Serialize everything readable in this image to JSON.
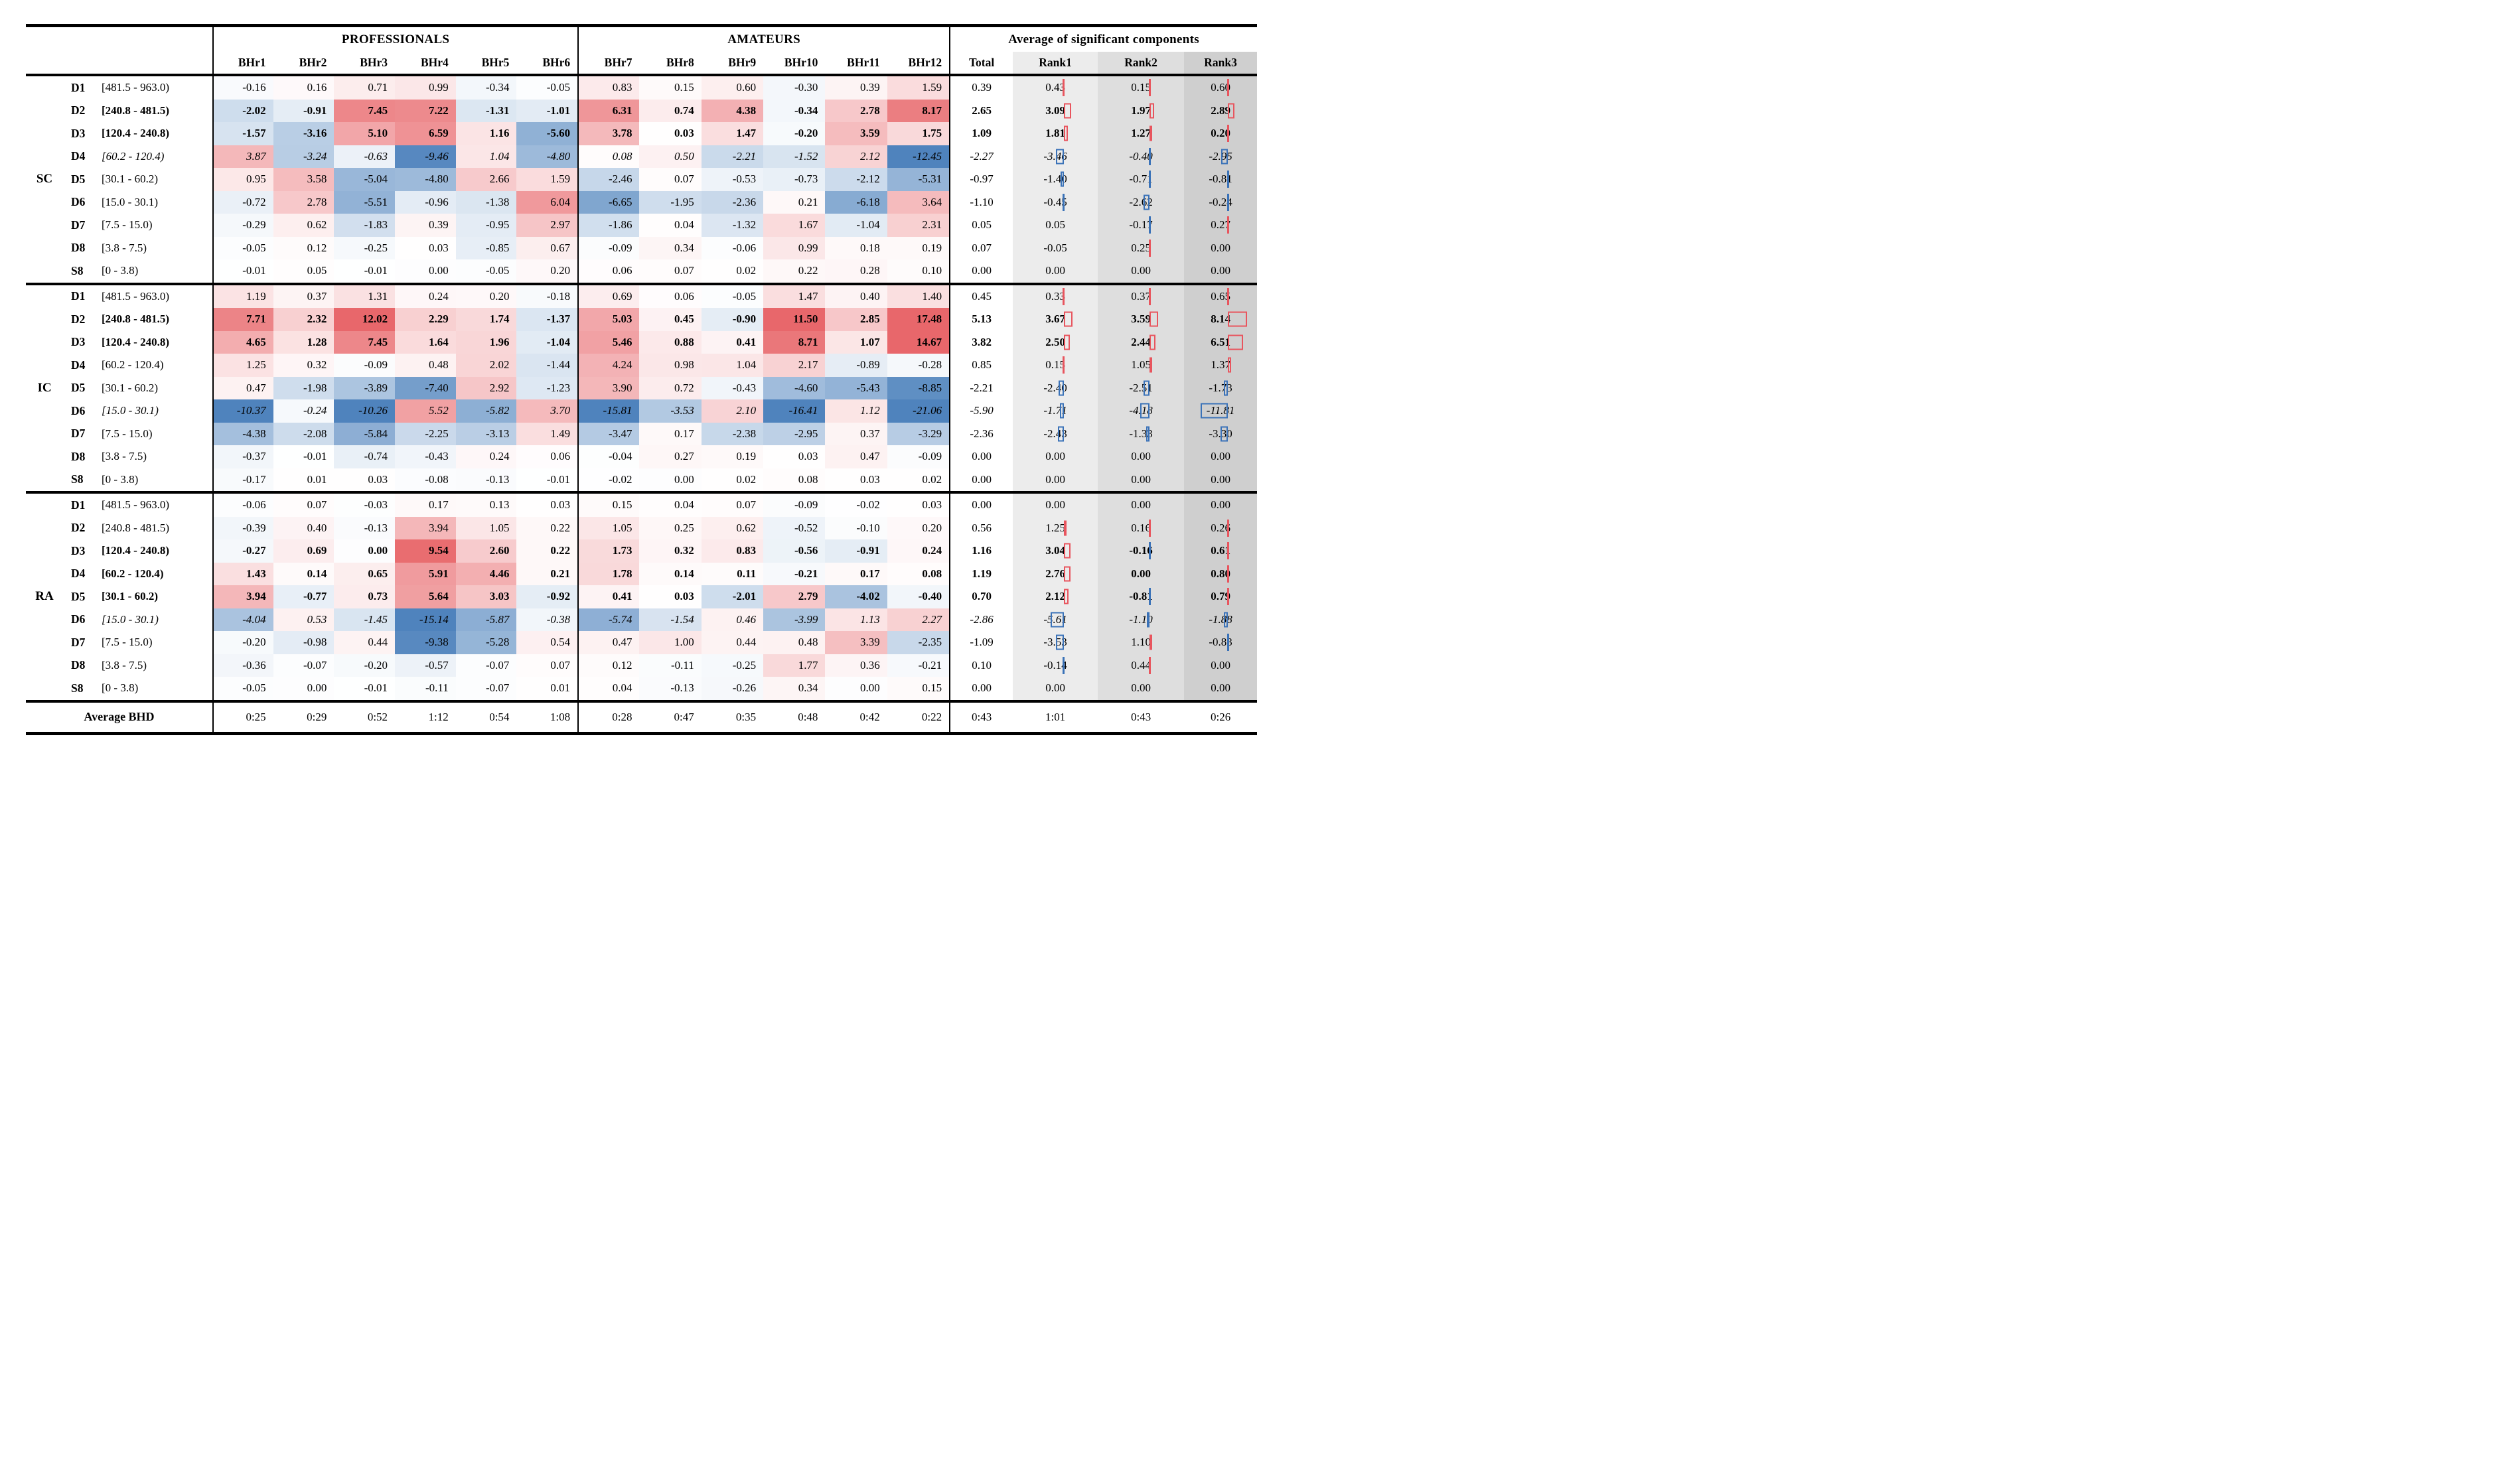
{
  "chart_data": {
    "type": "heatmap",
    "title": "",
    "col_groups": [
      "PROFESSIONALS",
      "AMATEURS",
      "Average of significant components"
    ],
    "columns": {
      "professionals": [
        "BHr1",
        "BHr2",
        "BHr3",
        "BHr4",
        "BHr5",
        "BHr6"
      ],
      "amateurs": [
        "BHr7",
        "BHr8",
        "BHr9",
        "BHr10",
        "BHr11",
        "BHr12"
      ],
      "right": [
        "Total",
        "Rank1",
        "Rank2",
        "Rank3"
      ]
    },
    "row_sections": [
      {
        "code": "SC",
        "rows": [
          {
            "code": "D1",
            "range": "[481.5 - 963.0)",
            "style": "normal",
            "pro": [
              -0.16,
              0.16,
              0.71,
              0.99,
              -0.34,
              -0.05
            ],
            "am": [
              0.83,
              0.15,
              0.6,
              -0.3,
              0.39,
              1.59
            ],
            "right": [
              0.39,
              0.43,
              0.15,
              0.6
            ]
          },
          {
            "code": "D2",
            "range": "[240.8 - 481.5)",
            "style": "bold",
            "pro": [
              -2.02,
              -0.91,
              7.45,
              7.22,
              -1.31,
              -1.01
            ],
            "am": [
              6.31,
              0.74,
              4.38,
              -0.34,
              2.78,
              8.17
            ],
            "right": [
              2.65,
              3.09,
              1.97,
              2.89
            ]
          },
          {
            "code": "D3",
            "range": "[120.4 - 240.8)",
            "style": "bold",
            "pro": [
              -1.57,
              -3.16,
              5.1,
              6.59,
              1.16,
              -5.6
            ],
            "am": [
              3.78,
              0.03,
              1.47,
              -0.2,
              3.59,
              1.75
            ],
            "right": [
              1.09,
              1.81,
              1.27,
              0.2
            ]
          },
          {
            "code": "D4",
            "range": "[60.2 - 120.4)",
            "style": "italic",
            "pro": [
              3.87,
              -3.24,
              -0.63,
              -9.46,
              1.04,
              -4.8
            ],
            "am": [
              0.08,
              0.5,
              -2.21,
              -1.52,
              2.12,
              -12.45
            ],
            "right": [
              -2.27,
              -3.46,
              -0.4,
              -2.95
            ]
          },
          {
            "code": "D5",
            "range": "[30.1 - 60.2)",
            "style": "normal",
            "pro": [
              0.95,
              3.58,
              -5.04,
              -4.8,
              2.66,
              1.59
            ],
            "am": [
              -2.46,
              0.07,
              -0.53,
              -0.73,
              -2.12,
              -5.31
            ],
            "right": [
              -0.97,
              -1.4,
              -0.71,
              -0.81
            ]
          },
          {
            "code": "D6",
            "range": "[15.0 - 30.1)",
            "style": "normal",
            "pro": [
              -0.72,
              2.78,
              -5.51,
              -0.96,
              -1.38,
              6.04
            ],
            "am": [
              -6.65,
              -1.95,
              -2.36,
              0.21,
              -6.18,
              3.64
            ],
            "right": [
              -1.1,
              -0.45,
              -2.62,
              -0.24
            ]
          },
          {
            "code": "D7",
            "range": "[7.5 - 15.0)",
            "style": "normal",
            "pro": [
              -0.29,
              0.62,
              -1.83,
              0.39,
              -0.95,
              2.97
            ],
            "am": [
              -1.86,
              0.04,
              -1.32,
              1.67,
              -1.04,
              2.31
            ],
            "right": [
              0.05,
              0.05,
              -0.17,
              0.27
            ]
          },
          {
            "code": "D8",
            "range": "[3.8 - 7.5)",
            "style": "normal",
            "pro": [
              -0.05,
              0.12,
              -0.25,
              0.03,
              -0.85,
              0.67
            ],
            "am": [
              -0.09,
              0.34,
              -0.06,
              0.99,
              0.18,
              0.19
            ],
            "right": [
              0.07,
              -0.05,
              0.25,
              0.0
            ]
          },
          {
            "code": "S8",
            "range": "[0 - 3.8)",
            "style": "normal",
            "pro": [
              -0.01,
              0.05,
              -0.01,
              0.0,
              -0.05,
              0.2
            ],
            "am": [
              0.06,
              0.07,
              0.02,
              0.22,
              0.28,
              0.1
            ],
            "right": [
              0.0,
              0.0,
              0.0,
              0.0
            ]
          }
        ]
      },
      {
        "code": "IC",
        "rows": [
          {
            "code": "D1",
            "range": "[481.5 - 963.0)",
            "style": "normal",
            "pro": [
              1.19,
              0.37,
              1.31,
              0.24,
              0.2,
              -0.18
            ],
            "am": [
              0.69,
              0.06,
              -0.05,
              1.47,
              0.4,
              1.4
            ],
            "right": [
              0.45,
              0.33,
              0.37,
              0.65
            ]
          },
          {
            "code": "D2",
            "range": "[240.8 - 481.5)",
            "style": "bold",
            "pro": [
              7.71,
              2.32,
              12.02,
              2.29,
              1.74,
              -1.37
            ],
            "am": [
              5.03,
              0.45,
              -0.9,
              11.5,
              2.85,
              17.48
            ],
            "right": [
              5.13,
              3.67,
              3.59,
              8.14
            ]
          },
          {
            "code": "D3",
            "range": "[120.4 - 240.8)",
            "style": "bold",
            "pro": [
              4.65,
              1.28,
              7.45,
              1.64,
              1.96,
              -1.04
            ],
            "am": [
              5.46,
              0.88,
              0.41,
              8.71,
              1.07,
              14.67
            ],
            "right": [
              3.82,
              2.5,
              2.44,
              6.51
            ]
          },
          {
            "code": "D4",
            "range": "[60.2 - 120.4)",
            "style": "normal",
            "pro": [
              1.25,
              0.32,
              -0.09,
              0.48,
              2.02,
              -1.44
            ],
            "am": [
              4.24,
              0.98,
              1.04,
              2.17,
              -0.89,
              -0.28
            ],
            "right": [
              0.85,
              0.15,
              1.05,
              1.37
            ]
          },
          {
            "code": "D5",
            "range": "[30.1 - 60.2)",
            "style": "normal",
            "pro": [
              0.47,
              -1.98,
              -3.89,
              -7.4,
              2.92,
              -1.23
            ],
            "am": [
              3.9,
              0.72,
              -0.43,
              -4.6,
              -5.43,
              -8.85
            ],
            "right": [
              -2.21,
              -2.4,
              -2.51,
              -1.73
            ]
          },
          {
            "code": "D6",
            "range": "[15.0 - 30.1)",
            "style": "italic",
            "pro": [
              -10.37,
              -0.24,
              -10.26,
              5.52,
              -5.82,
              3.7
            ],
            "am": [
              -15.81,
              -3.53,
              2.1,
              -16.41,
              1.12,
              -21.06
            ],
            "right": [
              -5.9,
              -1.71,
              -4.18,
              -11.81
            ]
          },
          {
            "code": "D7",
            "range": "[7.5 - 15.0)",
            "style": "normal",
            "pro": [
              -4.38,
              -2.08,
              -5.84,
              -2.25,
              -3.13,
              1.49
            ],
            "am": [
              -3.47,
              0.17,
              -2.38,
              -2.95,
              0.37,
              -3.29
            ],
            "right": [
              -2.36,
              -2.43,
              -1.33,
              -3.3
            ]
          },
          {
            "code": "D8",
            "range": "[3.8 - 7.5)",
            "style": "normal",
            "pro": [
              -0.37,
              -0.01,
              -0.74,
              -0.43,
              0.24,
              0.06
            ],
            "am": [
              -0.04,
              0.27,
              0.19,
              0.03,
              0.47,
              -0.09
            ],
            "right": [
              0.0,
              0.0,
              0.0,
              0.0
            ]
          },
          {
            "code": "S8",
            "range": "[0 - 3.8)",
            "style": "normal",
            "pro": [
              -0.17,
              0.01,
              0.03,
              -0.08,
              -0.13,
              -0.01
            ],
            "am": [
              -0.02,
              0.0,
              0.02,
              0.08,
              0.03,
              0.02
            ],
            "right": [
              0.0,
              0.0,
              0.0,
              0.0
            ]
          }
        ]
      },
      {
        "code": "RA",
        "rows": [
          {
            "code": "D1",
            "range": "[481.5 - 963.0)",
            "style": "normal",
            "pro": [
              -0.06,
              0.07,
              -0.03,
              0.17,
              0.13,
              0.03
            ],
            "am": [
              0.15,
              0.04,
              0.07,
              -0.09,
              -0.02,
              0.03
            ],
            "right": [
              0.0,
              0.0,
              0.0,
              0.0
            ]
          },
          {
            "code": "D2",
            "range": "[240.8 - 481.5)",
            "style": "normal",
            "pro": [
              -0.39,
              0.4,
              -0.13,
              3.94,
              1.05,
              0.22
            ],
            "am": [
              1.05,
              0.25,
              0.62,
              -0.52,
              -0.1,
              0.2
            ],
            "right": [
              0.56,
              1.25,
              0.16,
              0.26
            ]
          },
          {
            "code": "D3",
            "range": "[120.4 - 240.8)",
            "style": "bold",
            "pro": [
              -0.27,
              0.69,
              0.0,
              9.54,
              2.6,
              0.22
            ],
            "am": [
              1.73,
              0.32,
              0.83,
              -0.56,
              -0.91,
              0.24
            ],
            "right": [
              1.16,
              3.04,
              -0.16,
              0.61
            ]
          },
          {
            "code": "D4",
            "range": "[60.2 - 120.4)",
            "style": "bold",
            "pro": [
              1.43,
              0.14,
              0.65,
              5.91,
              4.46,
              0.21
            ],
            "am": [
              1.78,
              0.14,
              0.11,
              -0.21,
              0.17,
              0.08
            ],
            "right": [
              1.19,
              2.76,
              0.0,
              0.8
            ]
          },
          {
            "code": "D5",
            "range": "[30.1 - 60.2)",
            "style": "bold",
            "pro": [
              3.94,
              -0.77,
              0.73,
              5.64,
              3.03,
              -0.92
            ],
            "am": [
              0.41,
              0.03,
              -2.01,
              2.79,
              -4.02,
              -0.4
            ],
            "right": [
              0.7,
              2.12,
              -0.81,
              0.79
            ]
          },
          {
            "code": "D6",
            "range": "[15.0 - 30.1)",
            "style": "italic",
            "pro": [
              -4.04,
              0.53,
              -1.45,
              -15.14,
              -5.87,
              -0.38
            ],
            "am": [
              -5.74,
              -1.54,
              0.46,
              -3.99,
              1.13,
              2.27
            ],
            "right": [
              -2.86,
              -5.61,
              -1.1,
              -1.88
            ]
          },
          {
            "code": "D7",
            "range": "[7.5 - 15.0)",
            "style": "normal",
            "pro": [
              -0.2,
              -0.98,
              0.44,
              -9.38,
              -5.28,
              0.54
            ],
            "am": [
              0.47,
              1.0,
              0.44,
              0.48,
              3.39,
              -2.35
            ],
            "right": [
              -1.09,
              -3.53,
              1.1,
              -0.83
            ]
          },
          {
            "code": "D8",
            "range": "[3.8 - 7.5)",
            "style": "normal",
            "pro": [
              -0.36,
              -0.07,
              -0.2,
              -0.57,
              -0.07,
              0.07
            ],
            "am": [
              0.12,
              -0.11,
              -0.25,
              1.77,
              0.36,
              -0.21
            ],
            "right": [
              0.1,
              -0.14,
              0.44,
              0.0
            ]
          },
          {
            "code": "S8",
            "range": "[0 - 3.8)",
            "style": "normal",
            "pro": [
              -0.05,
              0.0,
              -0.01,
              -0.11,
              -0.07,
              0.01
            ],
            "am": [
              0.04,
              -0.13,
              -0.26,
              0.34,
              0.0,
              0.15
            ],
            "right": [
              0.0,
              0.0,
              0.0,
              0.0
            ]
          }
        ]
      }
    ],
    "footer": {
      "label": "Average BHD",
      "pro": [
        "0:25",
        "0:29",
        "0:52",
        "1:12",
        "0:54",
        "1:08"
      ],
      "am": [
        "0:28",
        "0:47",
        "0:35",
        "0:48",
        "0:42",
        "0:22"
      ],
      "right": [
        "0:43",
        "1:01",
        "0:43",
        "0:26"
      ]
    },
    "colors": {
      "heat_positive_max": "#e8676b",
      "heat_negative_max": "#4f83bd",
      "heat_zero": "#ffffff",
      "heat_saturation_abs": 10,
      "marker_positive": "#e8555e",
      "marker_negative": "#3a72b8",
      "rank_bands": [
        "#ececec",
        "#dedede",
        "#cfcfcf"
      ],
      "border": "#000000"
    },
    "layout_hints": {
      "rank_marker_zero_line_pct": 60,
      "rank_marker_min_abs": 0.1,
      "grid": "off"
    }
  }
}
